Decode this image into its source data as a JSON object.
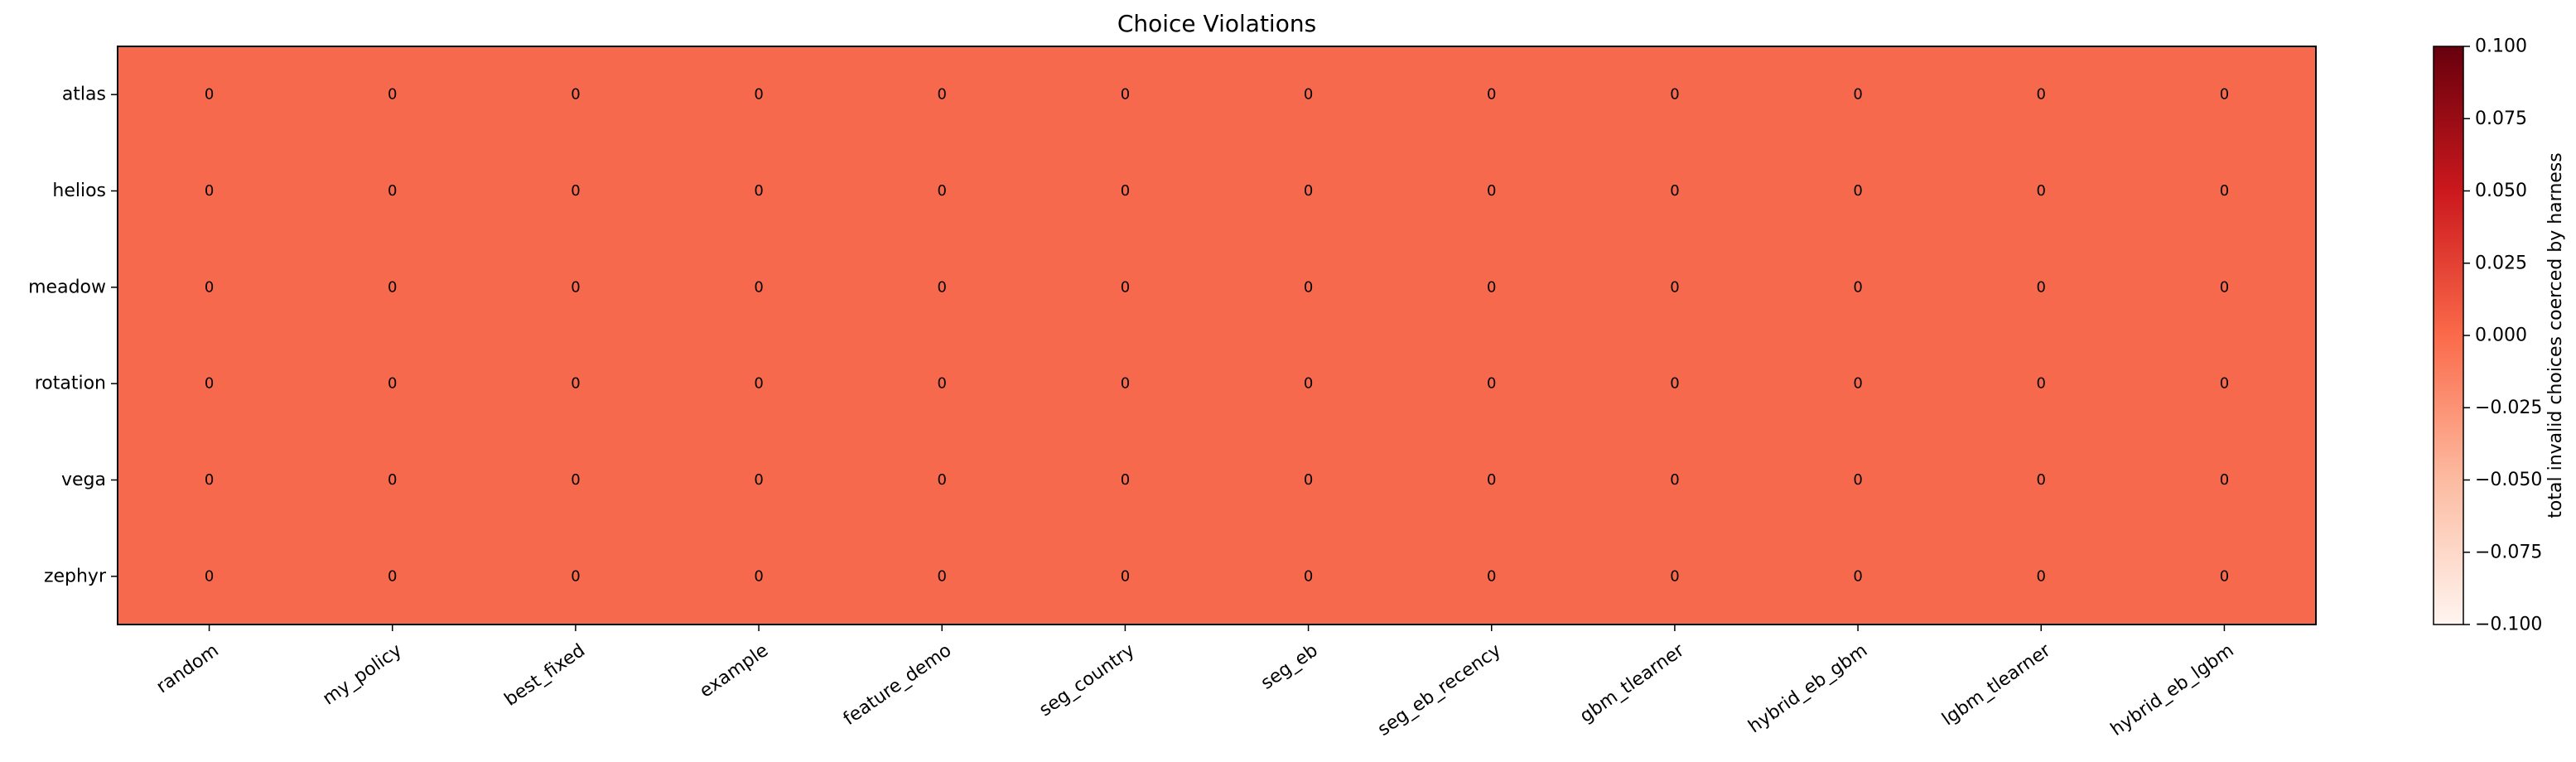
{
  "chart_data": {
    "type": "heatmap",
    "title": "Choice Violations",
    "xlabel": "",
    "ylabel": "",
    "x_categories": [
      "random",
      "my_policy",
      "best_fixed",
      "example",
      "feature_demo",
      "seg_country",
      "seg_eb",
      "seg_eb_recency",
      "gbm_tlearner",
      "hybrid_eb_gbm",
      "lgbm_tlearner",
      "hybrid_eb_lgbm"
    ],
    "y_categories": [
      "atlas",
      "helios",
      "meadow",
      "rotation",
      "vega",
      "zephyr"
    ],
    "values": [
      [
        0,
        0,
        0,
        0,
        0,
        0,
        0,
        0,
        0,
        0,
        0,
        0
      ],
      [
        0,
        0,
        0,
        0,
        0,
        0,
        0,
        0,
        0,
        0,
        0,
        0
      ],
      [
        0,
        0,
        0,
        0,
        0,
        0,
        0,
        0,
        0,
        0,
        0,
        0
      ],
      [
        0,
        0,
        0,
        0,
        0,
        0,
        0,
        0,
        0,
        0,
        0,
        0
      ],
      [
        0,
        0,
        0,
        0,
        0,
        0,
        0,
        0,
        0,
        0,
        0,
        0
      ],
      [
        0,
        0,
        0,
        0,
        0,
        0,
        0,
        0,
        0,
        0,
        0,
        0
      ]
    ],
    "colormap": "Reds",
    "colorbar": {
      "label": "total invalid choices coerced by harness",
      "range": [
        -0.1,
        0.1
      ],
      "ticks": [
        "0.100",
        "0.075",
        "0.050",
        "0.025",
        "0.000",
        "−0.025",
        "−0.050",
        "−0.075",
        "−0.100"
      ],
      "tick_values": [
        0.1,
        0.075,
        0.05,
        0.025,
        0.0,
        -0.025,
        -0.05,
        -0.075,
        -0.1
      ]
    },
    "cell_color": "#f6694c",
    "gradient_colors": [
      "#fff5f0",
      "#fcbba1",
      "#fb6a4a",
      "#cb181d",
      "#67000d"
    ],
    "grid": false
  }
}
